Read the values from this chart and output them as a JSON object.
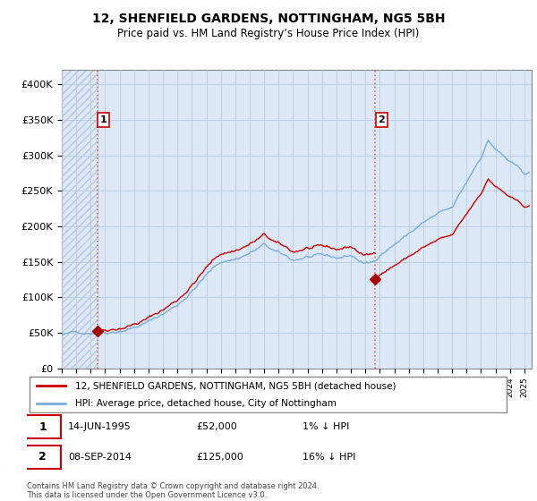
{
  "title": "12, SHENFIELD GARDENS, NOTTINGHAM, NG5 5BH",
  "subtitle": "Price paid vs. HM Land Registry’s House Price Index (HPI)",
  "ylabel_values": [
    "£0",
    "£50K",
    "£100K",
    "£150K",
    "£200K",
    "£250K",
    "£300K",
    "£350K",
    "£400K"
  ],
  "yticks": [
    0,
    50000,
    100000,
    150000,
    200000,
    250000,
    300000,
    350000,
    400000
  ],
  "ylim": [
    0,
    420000
  ],
  "xlim_start": 1993.0,
  "xlim_end": 2025.5,
  "transaction1": {
    "date_num": 1995.45,
    "price": 52000,
    "label": "1"
  },
  "transaction2": {
    "date_num": 2014.68,
    "price": 125000,
    "label": "2"
  },
  "legend_line1": "12, SHENFIELD GARDENS, NOTTINGHAM, NG5 5BH (detached house)",
  "legend_line2": "HPI: Average price, detached house, City of Nottingham",
  "footnote": "Contains HM Land Registry data © Crown copyright and database right 2024.\nThis data is licensed under the Open Government Licence v3.0.",
  "hpi_color": "#7aaddc",
  "price_color": "#cc0000",
  "dashed_color": "#e06060",
  "bg_color": "#dce8f5",
  "hatch_color": "#b8c8d8",
  "grid_color": "#b8cce0",
  "transaction_marker_color": "#aa0000"
}
